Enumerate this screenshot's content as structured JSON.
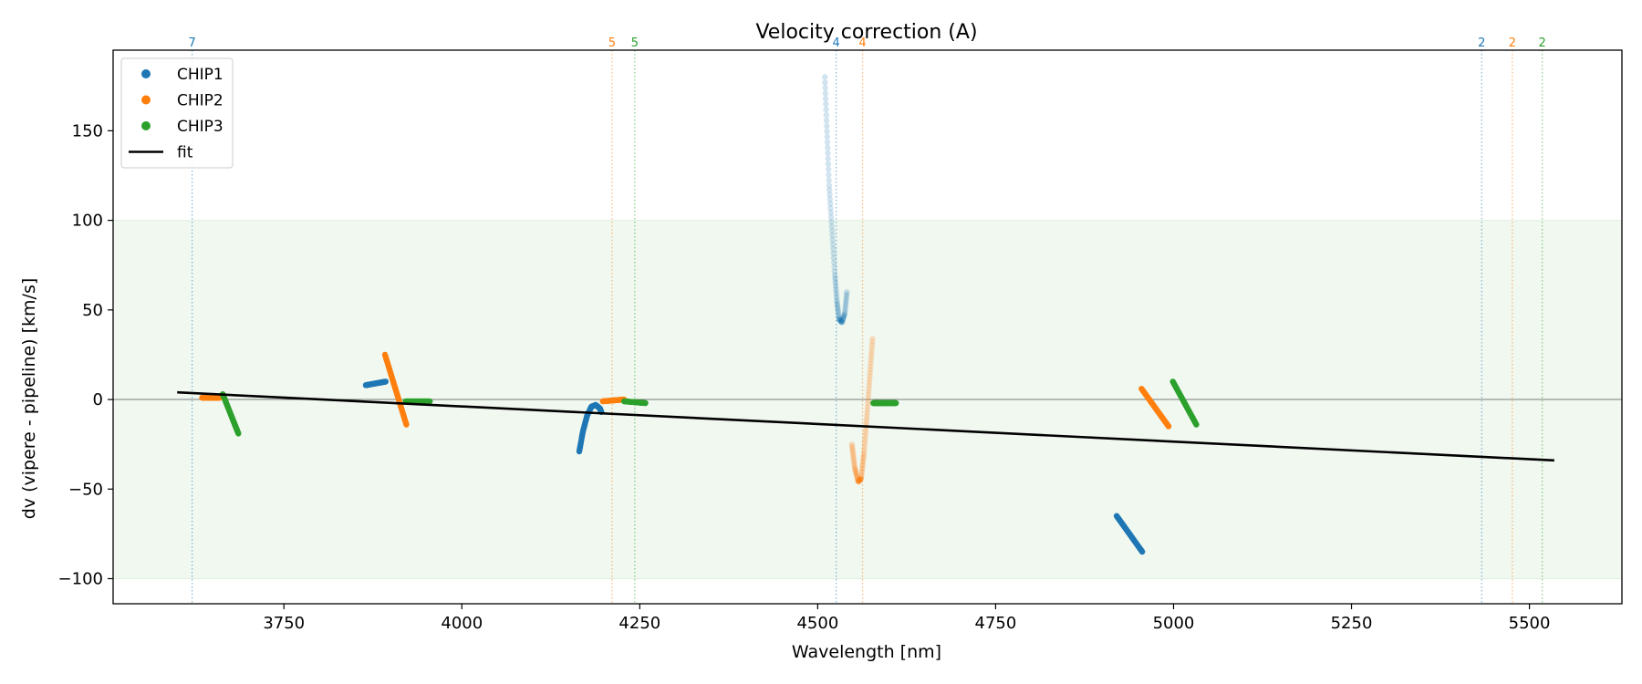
{
  "chart_data": {
    "type": "scatter",
    "title": "Velocity correction (A)",
    "xlabel": "Wavelength [nm]",
    "ylabel": "dv (vipere - pipeline) [km/s]",
    "xlim": [
      3510,
      5630
    ],
    "ylim": [
      -114,
      195
    ],
    "xticks": [
      3750,
      4000,
      4250,
      4500,
      4750,
      5000,
      5250,
      5500
    ],
    "yticks": [
      -100,
      -50,
      0,
      50,
      100,
      150
    ],
    "band": [
      -100,
      100
    ],
    "band_color": "#2ca02c",
    "zero_line": 0,
    "legend_position": "upper left",
    "colors": {
      "CHIP1": "#1f77b4",
      "CHIP2": "#ff7f0e",
      "CHIP3": "#2ca02c",
      "fit": "#000000"
    },
    "legend": [
      {
        "label": "CHIP1",
        "kind": "marker",
        "color": "#1f77b4"
      },
      {
        "label": "CHIP2",
        "kind": "marker",
        "color": "#ff7f0e"
      },
      {
        "label": "CHIP3",
        "kind": "marker",
        "color": "#2ca02c"
      },
      {
        "label": "fit",
        "kind": "line",
        "color": "#000000"
      }
    ],
    "fit": {
      "x": [
        3600,
        5535
      ],
      "y": [
        4,
        -34
      ]
    },
    "vlines": [
      {
        "x": 3621,
        "label": "7",
        "color": "#1f77b4"
      },
      {
        "x": 4211,
        "label": "5",
        "color": "#ff7f0e"
      },
      {
        "x": 4243,
        "label": "5",
        "color": "#2ca02c"
      },
      {
        "x": 4526,
        "label": "4",
        "color": "#1f77b4"
      },
      {
        "x": 4563,
        "label": "4",
        "color": "#ff7f0e"
      },
      {
        "x": 5433,
        "label": "2",
        "color": "#1f77b4"
      },
      {
        "x": 5476,
        "label": "2",
        "color": "#ff7f0e"
      },
      {
        "x": 5518,
        "label": "2",
        "color": "#2ca02c"
      }
    ],
    "segments": [
      {
        "series": "CHIP2",
        "alpha": 1,
        "shape": "linear",
        "x": [
          3635,
          3660
        ],
        "y": [
          1,
          1
        ]
      },
      {
        "series": "CHIP3",
        "alpha": 1,
        "shape": "linear",
        "x": [
          3664,
          3686
        ],
        "y": [
          3,
          -19
        ]
      },
      {
        "series": "CHIP1",
        "alpha": 1,
        "shape": "linear",
        "x": [
          3865,
          3893
        ],
        "y": [
          8,
          10
        ]
      },
      {
        "series": "CHIP2",
        "alpha": 1,
        "shape": "linear",
        "x": [
          3892,
          3922
        ],
        "y": [
          25,
          -14
        ]
      },
      {
        "series": "CHIP3",
        "alpha": 1,
        "shape": "linear",
        "x": [
          3921,
          3955
        ],
        "y": [
          -1,
          -1
        ]
      },
      {
        "series": "CHIP1",
        "alpha": 1,
        "shape": "curve",
        "x": [
          4165,
          4170,
          4176,
          4182,
          4188,
          4194,
          4196
        ],
        "y": [
          -29,
          -18,
          -9,
          -4,
          -3,
          -5,
          -7
        ]
      },
      {
        "series": "CHIP2",
        "alpha": 1,
        "shape": "linear",
        "x": [
          4198,
          4228
        ],
        "y": [
          -1,
          0
        ]
      },
      {
        "series": "CHIP3",
        "alpha": 1,
        "shape": "linear",
        "x": [
          4228,
          4258
        ],
        "y": [
          -1,
          -2
        ]
      },
      {
        "series": "CHIP1",
        "alpha": 0.2,
        "shape": "curve",
        "x": [
          4510,
          4513,
          4516,
          4520,
          4524,
          4527,
          4530,
          4534,
          4538,
          4541
        ],
        "y": [
          180,
          150,
          120,
          95,
          70,
          55,
          45,
          43,
          48,
          60
        ]
      },
      {
        "series": "CHIP2",
        "alpha": 0.2,
        "shape": "curve",
        "x": [
          4548,
          4552,
          4557,
          4561,
          4565,
          4569,
          4573,
          4577
        ],
        "y": [
          -25,
          -38,
          -46,
          -44,
          -30,
          -10,
          12,
          34
        ]
      },
      {
        "series": "CHIP3",
        "alpha": 1,
        "shape": "linear",
        "x": [
          4578,
          4610
        ],
        "y": [
          -2,
          -2
        ]
      },
      {
        "series": "CHIP1",
        "alpha": 1,
        "shape": "linear",
        "x": [
          4920,
          4956
        ],
        "y": [
          -65,
          -85
        ]
      },
      {
        "series": "CHIP2",
        "alpha": 1,
        "shape": "linear",
        "x": [
          4955,
          4993
        ],
        "y": [
          6,
          -15
        ]
      },
      {
        "series": "CHIP3",
        "alpha": 1,
        "shape": "linear",
        "x": [
          4999,
          5032
        ],
        "y": [
          10,
          -14
        ]
      }
    ]
  }
}
